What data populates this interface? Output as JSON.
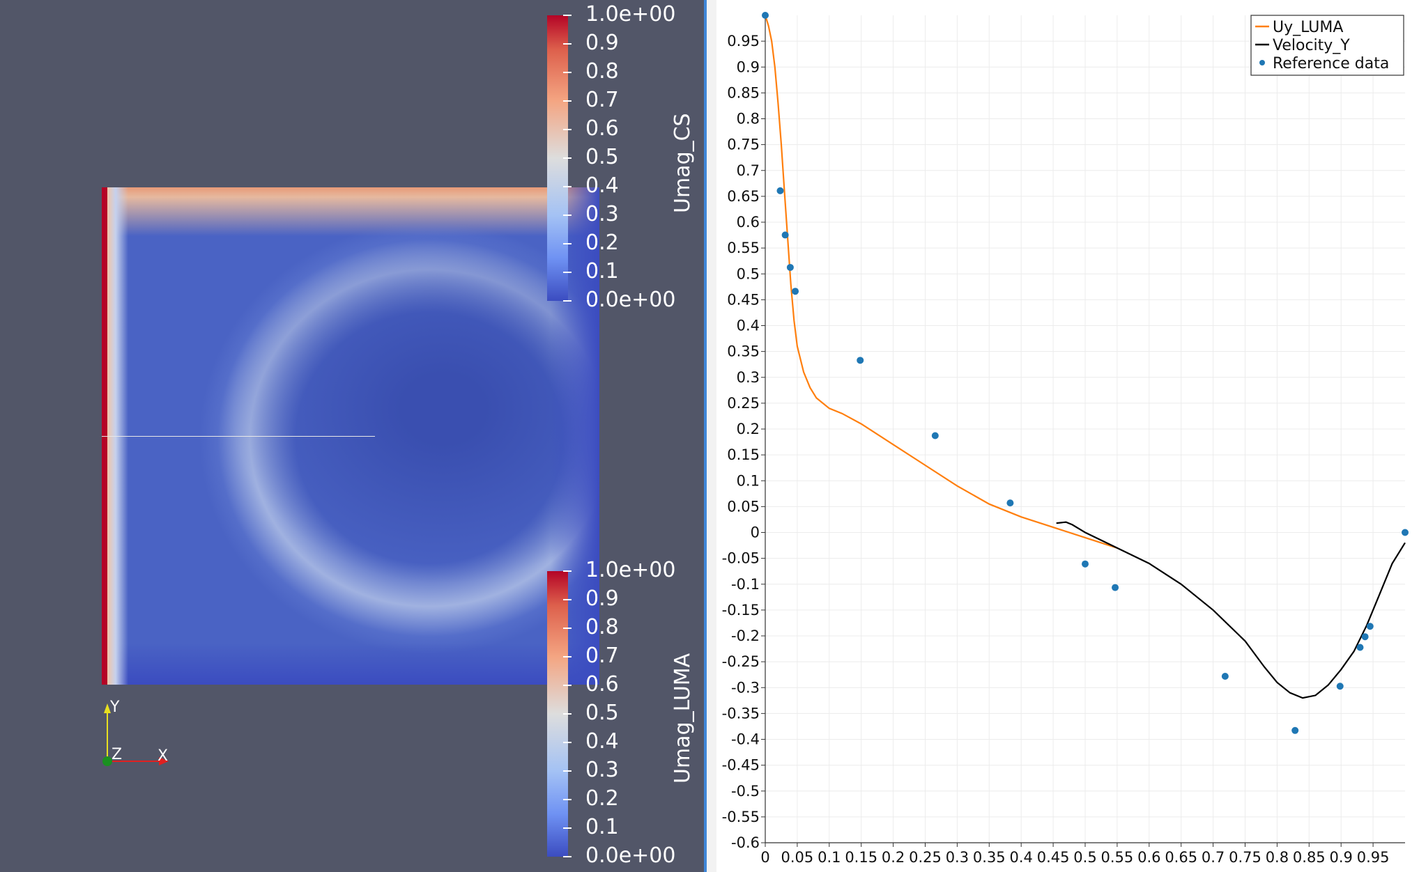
{
  "render_view": {
    "colorbar_top": {
      "title": "Umag_CS",
      "labels": [
        "1.0e+00",
        "0.9",
        "0.8",
        "0.7",
        "0.6",
        "0.5",
        "0.4",
        "0.3",
        "0.2",
        "0.1",
        "0.0e+00"
      ]
    },
    "colorbar_bottom": {
      "title": "Umag_LUMA",
      "labels": [
        "1.0e+00",
        "0.9",
        "0.8",
        "0.7",
        "0.6",
        "0.5",
        "0.4",
        "0.3",
        "0.2",
        "0.1",
        "0.0e+00"
      ]
    },
    "axes": {
      "y": "Y",
      "z": "Z",
      "x": "X"
    },
    "colors": {
      "background": "#525668",
      "high": "#b40426",
      "low": "#3b4cc0"
    }
  },
  "chart_data": {
    "type": "line",
    "title": "",
    "xlabel": "",
    "ylabel": "",
    "xlim": [
      0,
      1.0
    ],
    "ylim": [
      -0.6,
      1.0
    ],
    "x_ticks": [
      0,
      0.05,
      0.1,
      0.15,
      0.2,
      0.25,
      0.3,
      0.35,
      0.4,
      0.45,
      0.5,
      0.55,
      0.6,
      0.65,
      0.7,
      0.75,
      0.8,
      0.85,
      0.9,
      0.95
    ],
    "x_tick_labels": [
      "0",
      "0.05",
      "0.1",
      "0.15",
      "0.2",
      "0.25",
      "0.3",
      "0.35",
      "0.4",
      "0.45",
      "0.5",
      "0.55",
      "0.6",
      "0.65",
      "0.7",
      "0.75",
      "0.8",
      "0.85",
      "0.9",
      "0.95"
    ],
    "y_ticks": [
      0.95,
      0.9,
      0.85,
      0.8,
      0.75,
      0.7,
      0.65,
      0.6,
      0.55,
      0.5,
      0.45,
      0.4,
      0.35,
      0.3,
      0.25,
      0.2,
      0.15,
      0.1,
      0.05,
      0,
      -0.05,
      -0.1,
      -0.15,
      -0.2,
      -0.25,
      -0.3,
      -0.35,
      -0.4,
      -0.45,
      -0.5,
      -0.55,
      -0.6
    ],
    "y_tick_labels": [
      "0.95",
      "0.9",
      "0.85",
      "0.8",
      "0.75",
      "0.7",
      "0.65",
      "0.6",
      "0.55",
      "0.5",
      "0.45",
      "0.4",
      "0.35",
      "0.3",
      "0.25",
      "0.2",
      "0.15",
      "0.1",
      "0.05",
      "0",
      "-0.05",
      "-0.1",
      "-0.15",
      "-0.2",
      "-0.25",
      "-0.3",
      "-0.35",
      "-0.4",
      "-0.45",
      "-0.5",
      "-0.55",
      "-0.6"
    ],
    "grid": true,
    "legend_position": "top-right",
    "series": [
      {
        "name": "Uy_LUMA",
        "color": "#ff7f0e",
        "kind": "line",
        "x": [
          0.0,
          0.005,
          0.01,
          0.015,
          0.02,
          0.025,
          0.03,
          0.035,
          0.04,
          0.045,
          0.05,
          0.06,
          0.07,
          0.08,
          0.09,
          0.1,
          0.12,
          0.15,
          0.2,
          0.25,
          0.3,
          0.35,
          0.4,
          0.45,
          0.5,
          0.55
        ],
        "y": [
          1.0,
          0.98,
          0.95,
          0.9,
          0.83,
          0.75,
          0.66,
          0.57,
          0.48,
          0.41,
          0.36,
          0.31,
          0.28,
          0.26,
          0.25,
          0.24,
          0.23,
          0.21,
          0.17,
          0.13,
          0.09,
          0.055,
          0.03,
          0.01,
          -0.01,
          -0.03
        ]
      },
      {
        "name": "Velocity_Y",
        "color": "#000000",
        "kind": "line",
        "x": [
          0.455,
          0.47,
          0.48,
          0.5,
          0.55,
          0.6,
          0.65,
          0.7,
          0.75,
          0.78,
          0.8,
          0.82,
          0.84,
          0.86,
          0.88,
          0.9,
          0.92,
          0.94,
          0.96,
          0.98,
          1.0
        ],
        "y": [
          0.018,
          0.02,
          0.015,
          0.0,
          -0.03,
          -0.06,
          -0.1,
          -0.15,
          -0.21,
          -0.26,
          -0.29,
          -0.31,
          -0.32,
          -0.315,
          -0.295,
          -0.265,
          -0.23,
          -0.18,
          -0.12,
          -0.06,
          -0.02
        ]
      },
      {
        "name": "Reference data",
        "color": "#1f77b4",
        "kind": "scatter",
        "x": [
          0.0,
          0.0234,
          0.0312,
          0.0391,
          0.0469,
          0.1484,
          0.2656,
          0.3828,
          0.5,
          0.5469,
          0.7188,
          0.8281,
          0.8984,
          0.9297,
          0.9375,
          0.9453,
          1.0
        ],
        "y": [
          1.0,
          0.6608,
          0.5752,
          0.5125,
          0.4664,
          0.3329,
          0.1872,
          0.0571,
          -0.0609,
          -0.1065,
          -0.2781,
          -0.3829,
          -0.2973,
          -0.2222,
          -0.2016,
          -0.1815,
          0.0
        ]
      }
    ]
  }
}
